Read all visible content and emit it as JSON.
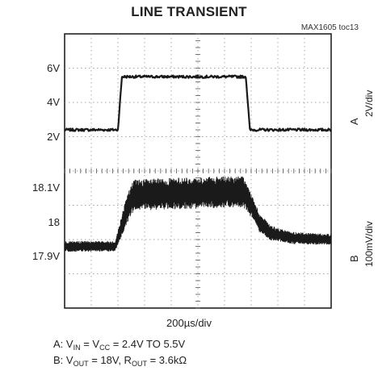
{
  "chart_data": {
    "type": "line",
    "title": "LINE TRANSIENT",
    "figure_id": "MAX1605 toc13",
    "x_scale_label": "200µs/div",
    "x_divisions": 10,
    "y_divisions": 8,
    "channels": [
      {
        "id": "A",
        "scale_label": "2V/div",
        "tick_labels": [
          {
            "text": "6V",
            "value": 6
          },
          {
            "text": "4V",
            "value": 4
          },
          {
            "text": "2V",
            "value": 2
          }
        ],
        "ylim": [
          0,
          8
        ],
        "points": [
          [
            0,
            2.4
          ],
          [
            2.0,
            2.4
          ],
          [
            2.15,
            5.5
          ],
          [
            6.8,
            5.5
          ],
          [
            6.95,
            2.4
          ],
          [
            10,
            2.4
          ]
        ],
        "noise": 0.15
      },
      {
        "id": "B",
        "scale_label": "100mV/div",
        "tick_labels": [
          {
            "text": "18.1V",
            "value": 18.1
          },
          {
            "text": "18",
            "value": 18.0
          },
          {
            "text": "17.9V",
            "value": 17.9
          }
        ],
        "ylim": [
          17.75,
          18.15
        ],
        "points": [
          [
            0,
            17.93
          ],
          [
            1.9,
            17.93
          ],
          [
            2.3,
            18.03
          ],
          [
            2.6,
            18.08
          ],
          [
            6.7,
            18.09
          ],
          [
            7.0,
            18.05
          ],
          [
            7.3,
            18.0
          ],
          [
            7.7,
            17.97
          ],
          [
            8.5,
            17.955
          ],
          [
            10,
            17.95
          ]
        ],
        "ripple": [
          [
            0,
            0.015
          ],
          [
            1.9,
            0.015
          ],
          [
            2.4,
            0.045
          ],
          [
            6.7,
            0.045
          ],
          [
            7.1,
            0.03
          ],
          [
            8.0,
            0.018
          ],
          [
            10,
            0.015
          ]
        ]
      }
    ]
  },
  "notes": {
    "line_a": {
      "prefix": "A:  V",
      "sub1": "IN",
      "mid": " = V",
      "sub2": "CC",
      "suffix": " = 2.4V TO 5.5V"
    },
    "line_b": {
      "prefix": "B:  V",
      "sub1": "OUT",
      "mid": " = 18V, R",
      "sub2": "OUT",
      "suffix": " = 3.6kΩ"
    }
  }
}
